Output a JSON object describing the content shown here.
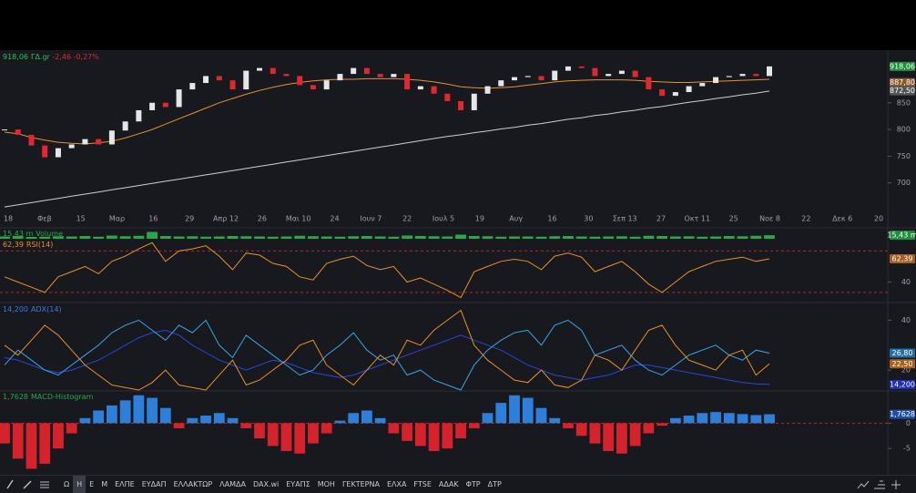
{
  "chart_data": [
    {
      "type": "candlestick",
      "title": "ΓΔ.gr",
      "last_label": "918,06",
      "change_label": "-2,46 -0,27%",
      "values": [
        800,
        790,
        770,
        748,
        765,
        772,
        782,
        772,
        798,
        815,
        836,
        850,
        842,
        875,
        887,
        900,
        892,
        875,
        910,
        915,
        904,
        900,
        883,
        875,
        892,
        904,
        915,
        904,
        898,
        904,
        875,
        881,
        867,
        853,
        836,
        867,
        881,
        892,
        898,
        900,
        892,
        910,
        918,
        915,
        900,
        904,
        910,
        898,
        875,
        863,
        870,
        881,
        887,
        898,
        900,
        904,
        900,
        918.06
      ],
      "up_color": "#e6e6e6",
      "down_color": "#e0282e",
      "overlays": [
        {
          "color": "#cfcfcf",
          "values": [
            655,
            659,
            663,
            667,
            671,
            675,
            679,
            683,
            687,
            691,
            695,
            699,
            703,
            707,
            711,
            715,
            719,
            723,
            727,
            731,
            735,
            739,
            743,
            747,
            751,
            755,
            759,
            763,
            767,
            771,
            775,
            779,
            783,
            787,
            790,
            794,
            797,
            801,
            804,
            808,
            811,
            815,
            819,
            822,
            826,
            829,
            833,
            836,
            840,
            843,
            847,
            851,
            854,
            858,
            861,
            865,
            868,
            872
          ]
        },
        {
          "color": "#e8902c",
          "values": [
            795,
            792,
            785,
            780,
            776,
            774,
            773,
            775,
            778,
            784,
            792,
            800,
            810,
            820,
            830,
            840,
            850,
            858,
            866,
            873,
            879,
            884,
            888,
            891,
            893,
            894,
            894,
            895,
            895,
            895,
            894,
            892,
            889,
            885,
            880,
            878,
            877,
            878,
            880,
            883,
            886,
            889,
            891,
            892,
            893,
            893,
            893,
            892,
            890,
            889,
            888,
            888,
            889,
            890,
            891,
            892,
            893,
            894
          ]
        }
      ],
      "ylim": [
        650,
        940
      ],
      "yticks": [
        700,
        750,
        800,
        850
      ],
      "grid": false,
      "xtick_labels": [
        "18",
        "Φεβ",
        "15",
        "Μαρ",
        "16",
        "29",
        "Απρ 12",
        "26",
        "Μαι 10",
        "24",
        "Ιουν 7",
        "22",
        "Ιουλ 5",
        "19",
        "Αυγ",
        "16",
        "30",
        "Σεπ 13",
        "27",
        "Οκτ 11",
        "25",
        "Νοε 8",
        "22",
        "Δεκ 6",
        "20"
      ],
      "tags": [
        {
          "value": 918.06,
          "label": "918,06",
          "color": "#1f8f3a"
        },
        {
          "value": 887.8,
          "label": "887,80",
          "color": "#8a5a2a"
        },
        {
          "value": 872.5,
          "label": "872,50",
          "color": "#555"
        }
      ]
    },
    {
      "type": "bar",
      "title": "Volume",
      "last_label": "15,43 m",
      "color": "#27a84a",
      "values": [
        10,
        12,
        8,
        9,
        11,
        10,
        12,
        9,
        14,
        11,
        13,
        30,
        12,
        10,
        11,
        9,
        10,
        12,
        11,
        10,
        9,
        10,
        13,
        11,
        10,
        9,
        11,
        12,
        10,
        9,
        14,
        12,
        11,
        10,
        18,
        12,
        11,
        9,
        10,
        10,
        9,
        11,
        12,
        10,
        9,
        10,
        11,
        9,
        13,
        12,
        10,
        11,
        9,
        10,
        12,
        11,
        13,
        15.43
      ],
      "ylim": [
        0,
        40
      ],
      "yticks": [],
      "label_color": "#27a84a",
      "tags": [
        {
          "value": 15.43,
          "label": "15,43 m",
          "color": "#1f8f3a"
        }
      ]
    },
    {
      "type": "line",
      "title": "RSI(14)",
      "last_label": "62,39",
      "label_color": "#e8902c",
      "series": [
        {
          "color": "#e8902c",
          "values": [
            45,
            40,
            35,
            30,
            45,
            50,
            55,
            48,
            60,
            65,
            72,
            78,
            60,
            70,
            72,
            75,
            65,
            52,
            68,
            66,
            58,
            55,
            45,
            42,
            58,
            62,
            65,
            56,
            52,
            55,
            40,
            44,
            38,
            32,
            25,
            50,
            55,
            60,
            62,
            60,
            52,
            65,
            68,
            64,
            50,
            55,
            60,
            50,
            38,
            30,
            40,
            50,
            55,
            60,
            62,
            64,
            60,
            62.39
          ]
        }
      ],
      "ylim": [
        22,
        80
      ],
      "yticks": [
        40
      ],
      "hlines": [
        70,
        30
      ],
      "tags": [
        {
          "value": 62.39,
          "label": "62,39",
          "color": "#a8601c"
        }
      ]
    },
    {
      "type": "line",
      "title": "ADX(14)",
      "last_label": "14,200",
      "label_color": "#3a7be0",
      "series": [
        {
          "color": "#2a46d8",
          "values": [
            25,
            24,
            22,
            20,
            19,
            20,
            22,
            24,
            27,
            30,
            33,
            35,
            36,
            34,
            30,
            27,
            24,
            22,
            20,
            22,
            24,
            23,
            21,
            19,
            18,
            17,
            18,
            20,
            22,
            24,
            26,
            28,
            30,
            32,
            34,
            32,
            30,
            28,
            25,
            22,
            20,
            18,
            17,
            16,
            17,
            18,
            20,
            22,
            22,
            21,
            20,
            19,
            18,
            17,
            16,
            15,
            14.5,
            14.2
          ]
        },
        {
          "color": "#3aa6e6",
          "values": [
            22,
            28,
            24,
            20,
            18,
            22,
            26,
            30,
            35,
            38,
            40,
            36,
            32,
            38,
            35,
            40,
            30,
            25,
            34,
            30,
            26,
            22,
            18,
            20,
            26,
            30,
            35,
            28,
            24,
            26,
            18,
            20,
            16,
            14,
            12,
            22,
            28,
            32,
            35,
            36,
            30,
            38,
            40,
            36,
            26,
            28,
            30,
            24,
            20,
            18,
            22,
            26,
            28,
            30,
            26,
            24,
            28,
            26.8
          ]
        },
        {
          "color": "#e8902c",
          "values": [
            30,
            26,
            32,
            38,
            34,
            28,
            22,
            18,
            14,
            13,
            12,
            15,
            20,
            14,
            13,
            12,
            18,
            24,
            14,
            16,
            20,
            24,
            30,
            32,
            22,
            18,
            14,
            20,
            26,
            22,
            32,
            30,
            36,
            40,
            44,
            30,
            24,
            20,
            16,
            15,
            20,
            14,
            13,
            16,
            26,
            24,
            20,
            28,
            36,
            38,
            30,
            24,
            22,
            20,
            26,
            28,
            18,
            22.5
          ]
        }
      ],
      "ylim": [
        12,
        46
      ],
      "yticks": [
        20,
        40
      ],
      "hlines": [],
      "tags": [
        {
          "value": 26.8,
          "label": "26,80",
          "color": "#1f6fa8"
        },
        {
          "value": 22.5,
          "label": "22,50",
          "color": "#a8601c"
        },
        {
          "value": 14.2,
          "label": "14,200",
          "color": "#1f2fb0"
        }
      ]
    },
    {
      "type": "bar",
      "title": "MACD-Histogram",
      "last_label": "1,7628",
      "label_color": "#27a84a",
      "up_color": "#2e7fd9",
      "down_color": "#d4232c",
      "values": [
        -4,
        -7,
        -9,
        -8,
        -5,
        -2,
        1,
        2.5,
        3.5,
        4.5,
        5.5,
        5,
        3,
        -1,
        1,
        1.5,
        2,
        1,
        -1,
        -3,
        -4.5,
        -5.5,
        -6,
        -4,
        -2,
        0.5,
        2,
        2.5,
        1,
        -2,
        -3.5,
        -4.5,
        -5.5,
        -5,
        -3,
        -1,
        2,
        4,
        5.5,
        5,
        3,
        1,
        -1,
        -2.5,
        -4,
        -5.5,
        -6,
        -4.5,
        -2,
        -0.5,
        1,
        1.5,
        2,
        2.2,
        2,
        1.8,
        1.6,
        1.7628
      ],
      "ylim": [
        -10,
        6
      ],
      "yticks": [
        0,
        -5
      ],
      "hlines": [
        0
      ],
      "tags": [
        {
          "value": 1.7628,
          "label": "1,7628",
          "color": "#1f4fa8"
        }
      ]
    }
  ],
  "toolbar": [
    "Ω",
    "Η",
    "Ε",
    "Μ",
    "ΕΛΠΕ",
    "ΕΥΔΑΠ",
    "ΕΛΛΑΚΤΩΡ",
    "ΛΑΜΔΑ",
    "DAX.wi",
    "ΕΥΑΠΣ",
    "ΜΟΗ",
    "ΓΕΚΤΕΡΝΑ",
    "ΕΛΧΑ",
    "FTSE",
    "ΑΔΑΚ",
    "ΦΤΡ",
    "ΔΤΡ"
  ]
}
